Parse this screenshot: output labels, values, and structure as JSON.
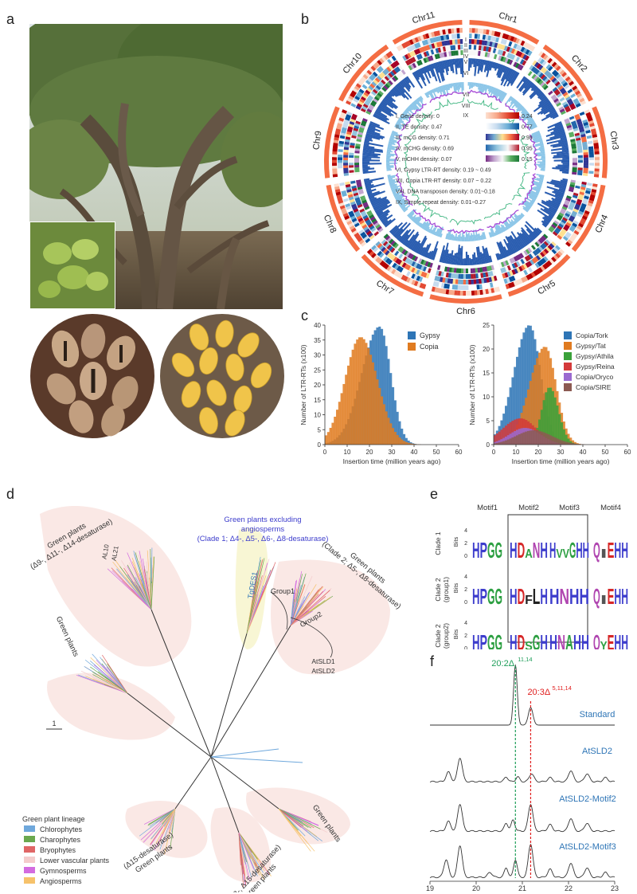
{
  "panel_letters": [
    "a",
    "b",
    "c",
    "d",
    "e",
    "f"
  ],
  "panel_b": {
    "chromosomes": [
      "Chr1",
      "Chr2",
      "Chr3",
      "Chr4",
      "Chr5",
      "Chr6",
      "Chr7",
      "Chr8",
      "Chr9",
      "Chr10",
      "Chr11"
    ],
    "ring_labels": [
      "I",
      "II",
      "III",
      "IV",
      "V",
      "VI",
      "VII",
      "VIII",
      "IX"
    ],
    "legend": [
      {
        "label": "I, Gene density: 0",
        "max": "0.24",
        "colors": [
          "#fde0d0",
          "#f7a889",
          "#e34a33",
          "#b30000"
        ]
      },
      {
        "label": "II, TE density: 0.47",
        "max": "0.77",
        "colors": [
          "#ffffff",
          "#c6dbef",
          "#6baed6",
          "#08519c"
        ]
      },
      {
        "label": "III, mCG density: 0.71",
        "max": "0.98",
        "colors": [
          "#313695",
          "#74add1",
          "#fee090",
          "#f46d43",
          "#a50026"
        ]
      },
      {
        "label": "IV, mCHG density: 0.69",
        "max": "0.95",
        "colors": [
          "#2166ac",
          "#92c5de",
          "#f7f7f7",
          "#b2182b"
        ]
      },
      {
        "label": "V, mCHH density: 0.07",
        "max": "0.15",
        "colors": [
          "#762a83",
          "#c2a5cf",
          "#f7f7f7",
          "#5aae61",
          "#1b7837"
        ]
      },
      {
        "label": "VI, Gypsy LTR-RT density: 0.19 ~ 0.49"
      },
      {
        "label": "VII, Copia LTR-RT density: 0.07 ~ 0.22"
      },
      {
        "label": "VIII, DNA transposon density: 0.01~0.18"
      },
      {
        "label": "IX, Simple repeat density: 0.01~0.27"
      }
    ],
    "colors": {
      "outer": "#f46d43",
      "gene": "#e34a33",
      "te": "#6baed6",
      "vi": "#2a5db0",
      "vii": "#8cc6e8",
      "viii": "#a64ad6",
      "ix": "#4dbb8a"
    }
  },
  "panel_c": {
    "left_chart": {
      "type": "bar",
      "xlabel": "Insertion time (million years ago)",
      "ylabel": "Number of LTR-RTs (x100)",
      "xlim": [
        0,
        60
      ],
      "ylim": [
        0,
        40
      ],
      "xticks": [
        "0",
        "10",
        "20",
        "30",
        "40",
        "50",
        "60"
      ],
      "yticks": [
        "0",
        "5",
        "10",
        "15",
        "20",
        "25",
        "30",
        "35",
        "40"
      ],
      "series": [
        {
          "name": "Gypsy",
          "color": "#2e75b6"
        },
        {
          "name": "Copia",
          "color": "#e07b20"
        }
      ]
    },
    "right_chart": {
      "type": "bar",
      "xlabel": "Insertion time (million years ago)",
      "ylabel": "Number of LTR-RTs (x100)",
      "xlim": [
        0,
        60
      ],
      "ylim": [
        0,
        25
      ],
      "xticks": [
        "0",
        "10",
        "20",
        "30",
        "40",
        "50",
        "60"
      ],
      "yticks": [
        "0",
        "5",
        "10",
        "15",
        "20",
        "25"
      ],
      "series": [
        {
          "name": "Copia/Tork",
          "color": "#2e75b6"
        },
        {
          "name": "Gypsy/Tat",
          "color": "#e07b20"
        },
        {
          "name": "Gypsy/Athila",
          "color": "#3aa13a"
        },
        {
          "name": "Gypsy/Reina",
          "color": "#d43a3a"
        },
        {
          "name": "Copia/Oryco",
          "color": "#9a6ad0"
        },
        {
          "name": "Copia/SIRE",
          "color": "#8c5a52"
        }
      ]
    }
  },
  "panel_d": {
    "labels": {
      "top_left": "Green plants\n(Δ9-, Δ11-, Δ14-desaturase)",
      "al10": "AL10",
      "al21": "AL21",
      "clade1": "Green plants excluding\nangiosperms\n(Clade 1; Δ4-, Δ5-, Δ6-, Δ8-desaturase)",
      "tgdes1": "TgDES1",
      "clade2": "Green plants\n(Clade 2; Δ5-, Δ8-desaturase)",
      "group1": "Group1",
      "group2": "Group2",
      "atsld1": "AtSLD1",
      "atsld2": "AtSLD2",
      "left_mid": "Green plants",
      "right_low": "Green plants",
      "d15": "(Δ15-desaturase)\nGreen plants",
      "d12": "(Δ12-, Δ15-desaturase)\nGreen plants",
      "scale": "1"
    },
    "legend_title": "Green plant lineage",
    "legend": [
      {
        "name": "Chlorophytes",
        "color": "#6fa8dc"
      },
      {
        "name": "Charophytes",
        "color": "#6aa84f"
      },
      {
        "name": "Bryophytes",
        "color": "#e06666"
      },
      {
        "name": "Lower vascular plants",
        "color": "#f4cccc"
      },
      {
        "name": "Gymnosperms",
        "color": "#d36be0"
      },
      {
        "name": "Angiosperms",
        "color": "#f6c26b"
      }
    ]
  },
  "panel_e": {
    "motifs": [
      "Motif1",
      "Motif2",
      "Motif3",
      "Motif4"
    ],
    "rows": [
      "Clade 1",
      "Clade 2\n(group1)",
      "Clade 2\n(group2)"
    ],
    "bits_label": "Bits",
    "bits_ticks": [
      "0",
      "2",
      "4"
    ],
    "logos": [
      [
        "HPGG",
        "HDANH",
        "HVVGHH",
        "QIEHH"
      ],
      [
        "HPGG",
        "HDFLH",
        "HNHH",
        "QIEHH"
      ],
      [
        "HPGG",
        "HDSGH",
        "HNAHH",
        "QYEHH"
      ]
    ]
  },
  "panel_f": {
    "peak1": "20:2Δ",
    "peak1_sup": "11,14",
    "peak2": "20:3Δ",
    "peak2_sup": "5,11,14",
    "traces": [
      "Standard",
      "AtSLD2",
      "AtSLD2-Motif2",
      "AtSLD2-Motif3"
    ],
    "xticks": [
      "19",
      "20",
      "21",
      "22",
      "23"
    ],
    "colors": {
      "peak1": "#1f9e5a",
      "peak2": "#e02020",
      "trace_label": "#2e75b6"
    }
  }
}
